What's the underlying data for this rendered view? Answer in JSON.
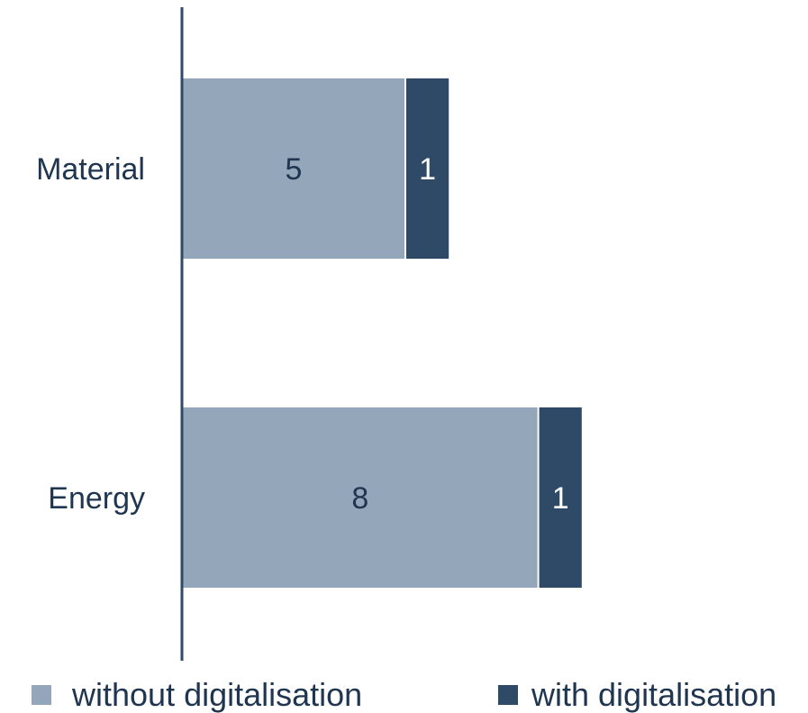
{
  "chart_data": {
    "type": "bar",
    "orientation": "horizontal",
    "stacked": true,
    "categories": [
      "Material",
      "Energy"
    ],
    "series": [
      {
        "name": "without digitalisation",
        "values": [
          5,
          8
        ],
        "color": "#94a7ba",
        "label_color": "#1f3550"
      },
      {
        "name": "with digitalisation",
        "values": [
          1,
          1
        ],
        "color": "#2e4a66",
        "label_color": "#ffffff"
      }
    ],
    "title": "",
    "xlabel": "",
    "ylabel": "",
    "xlim": [
      0,
      10
    ],
    "grid": false,
    "legend": "bottom"
  }
}
